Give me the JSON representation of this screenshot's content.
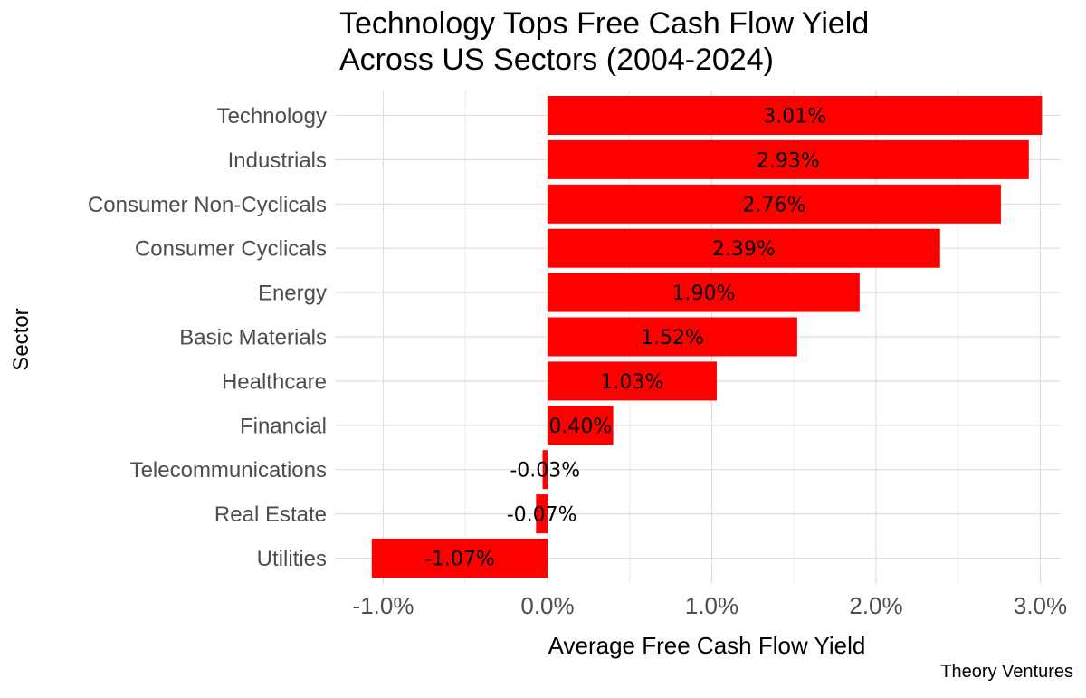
{
  "chart_data": {
    "type": "bar",
    "orientation": "horizontal",
    "title": [
      "Technology Tops Free Cash Flow Yield",
      "Across US Sectors (2004-2024)"
    ],
    "xlabel": "Average Free Cash Flow Yield",
    "ylabel": "Sector",
    "caption": "Theory Ventures",
    "categories": [
      "Technology",
      "Industrials",
      "Consumer Non-Cyclicals",
      "Consumer Cyclicals",
      "Energy",
      "Basic Materials",
      "Healthcare",
      "Financial",
      "Telecommunications",
      "Real Estate",
      "Utilities"
    ],
    "values": [
      3.01,
      2.93,
      2.76,
      2.39,
      1.9,
      1.52,
      1.03,
      0.4,
      -0.03,
      -0.07,
      -1.07
    ],
    "data_labels": [
      "3.01%",
      "2.93%",
      "2.76%",
      "2.39%",
      "1.90%",
      "1.52%",
      "1.03%",
      "0.40%",
      "-0.03%",
      "-0.07%",
      "-1.07%"
    ],
    "xticks": [
      -1.0,
      0.0,
      1.0,
      2.0,
      3.0
    ],
    "xtick_labels": [
      "-1.0%",
      "0.0%",
      "1.0%",
      "2.0%",
      "3.0%"
    ],
    "xlim": [
      -1.25,
      3.15
    ],
    "bar_color": "#ff0000",
    "grid_color": "#dedede",
    "grid": true
  }
}
